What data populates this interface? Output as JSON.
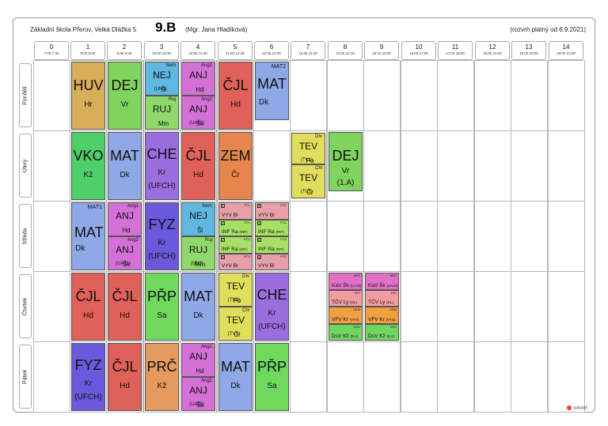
{
  "header": {
    "school": "Základní škola Přerov, Velká Dlážka 5",
    "class_name": "9.B",
    "teacher": "(Mgr. Jana Hladíková)",
    "validity": "(rozvrh platný od 6.9.2021)"
  },
  "periods": [
    {
      "num": "0",
      "time": "7:00 7:45"
    },
    {
      "num": "1",
      "time": "8:00 8:45"
    },
    {
      "num": "2",
      "time": "8:55 9:40"
    },
    {
      "num": "3",
      "time": "10:00 10:45"
    },
    {
      "num": "4",
      "time": "10:55 11:40"
    },
    {
      "num": "5",
      "time": "11:50 12:35"
    },
    {
      "num": "6",
      "time": "12:45 13:30"
    },
    {
      "num": "7",
      "time": "13:35 14:20"
    },
    {
      "num": "8",
      "time": "14:25 15:10"
    },
    {
      "num": "9",
      "time": "15:10 16:00"
    },
    {
      "num": "10",
      "time": "16:00 17:00"
    },
    {
      "num": "11",
      "time": "17:00 18:00"
    },
    {
      "num": "12",
      "time": "18:00 19:00"
    },
    {
      "num": "13",
      "time": "19:00 20:00"
    },
    {
      "num": "14",
      "time": "20:00 21:00"
    }
  ],
  "days": [
    "Pondělí",
    "Úterý",
    "Středa",
    "Čtvrtek",
    "Pátek"
  ],
  "colors": {
    "HUV": "#d9ae5a",
    "DEJ": "#7fd35f",
    "NEJ": "#5fb8e0",
    "ANJ": "#d470d6",
    "CJL": "#e0605a",
    "MAT": "#8fa8e6",
    "VKO": "#4fcf6a",
    "CHE": "#9b6ee0",
    "ZEM": "#e6854e",
    "TEV": "#e0de5a",
    "FYZ": "#6b58dc",
    "PRP": "#6fd95e",
    "PRC": "#e69a5e",
    "VYV": "#e8a0a8",
    "INF": "#a8df66",
    "RUJ": "#8fd86a",
    "KAV": "#e070c8",
    "TCV": "#f09ca0",
    "VFV": "#f0a040",
    "DSV": "#6fd760"
  },
  "logo_text": "bakaláři",
  "lessons": {
    "mon_huv": {
      "subj": "HUV",
      "teacher": "Hr"
    },
    "mon_dej": {
      "subj": "DEJ",
      "teacher": "Vr"
    },
    "mon_nej": {
      "grp": "Nem",
      "subj": "NEJ",
      "teacher": "Šl",
      "room": "(UNJ)"
    },
    "mon_ruj": {
      "grp": "Ruj",
      "subj": "RUJ",
      "teacher": "Mm"
    },
    "mon_anj1": {
      "grp": "Ang1",
      "subj": "ANJ",
      "teacher": "Hd"
    },
    "mon_anj2": {
      "grp": "Ang2",
      "subj": "ANJ",
      "teacher": "Šk",
      "room": "(UAJ1)"
    },
    "mon_cjl": {
      "subj": "ČJL",
      "teacher": "Hd"
    },
    "mon_mat": {
      "grp": "MAT2",
      "subj": "MAT",
      "teacher": "Dk"
    },
    "tue_vko": {
      "subj": "VKO",
      "teacher": "Kž"
    },
    "tue_mat": {
      "subj": "MAT",
      "teacher": "Dk"
    },
    "tue_che": {
      "subj": "CHE",
      "teacher": "Kr",
      "room": "(UFCH)"
    },
    "tue_cjl": {
      "subj": "ČJL",
      "teacher": "Hd"
    },
    "tue_zem": {
      "subj": "ZEM",
      "teacher": "Čr"
    },
    "tue_tev1": {
      "grp": "Dív",
      "subj": "TEV",
      "teacher": "Po",
      "room": "(TV1)"
    },
    "tue_tev2": {
      "grp": "Chl",
      "subj": "TEV",
      "teacher": "Čr",
      "room": "(TV2)"
    },
    "tue_dej": {
      "subj": "DEJ",
      "teacher": "Vr",
      "room": "(1.A)"
    },
    "wed_mat": {
      "grp": "MAT1",
      "subj": "MAT",
      "teacher": "Dk"
    },
    "wed_anj1": {
      "grp": "Ang1",
      "subj": "ANJ",
      "teacher": "Hd"
    },
    "wed_anj2": {
      "grp": "Ang2",
      "subj": "ANJ",
      "teacher": "Šk",
      "room": "(UAJ1)"
    },
    "wed_fyz": {
      "subj": "FYZ",
      "teacher": "Kr",
      "room": "(UFCH)"
    },
    "wed_nej": {
      "grp": "Nem",
      "subj": "NEJ",
      "teacher": "Šl"
    },
    "wed_ruj": {
      "grp": "Ruj",
      "subj": "RUJ",
      "teacher": "Mm",
      "room": "(UNJ)"
    },
    "wed5_a": {
      "sq": "1",
      "grp": "PČ1",
      "text": "VYV Bl"
    },
    "wed5_b": {
      "sq": "1",
      "grp": "PČ1",
      "text": "INF Ra",
      "room": "(INF)"
    },
    "wed5_c": {
      "sq": "2",
      "grp": "PČ2",
      "text": "INF Ra",
      "room": "(INF)"
    },
    "wed5_d": {
      "sq": "2",
      "grp": "PČ2",
      "text": "VYV Bl"
    },
    "wed6_a": {
      "sq": "1",
      "grp": "PČ1",
      "text": "VYV Bl"
    },
    "wed6_b": {
      "sq": "1",
      "grp": "PČ1",
      "text": "INF Ra",
      "room": "(INF)"
    },
    "wed6_c": {
      "sq": "2",
      "grp": "PČ2",
      "text": "INF Ra",
      "room": "(INF)"
    },
    "wed6_d": {
      "sq": "2",
      "grp": "PČ2",
      "text": "VYV Bl"
    },
    "thu_cjl1": {
      "subj": "ČJL",
      "teacher": "Hd"
    },
    "thu_cjl2": {
      "subj": "ČJL",
      "teacher": "Hd"
    },
    "thu_prp": {
      "subj": "PŘP",
      "teacher": "Sa"
    },
    "thu_mat": {
      "subj": "MAT",
      "teacher": "Dk"
    },
    "thu_tev1": {
      "grp": "Dív",
      "subj": "TEV",
      "teacher": "Po",
      "room": "(TV2)"
    },
    "thu_tev2": {
      "grp": "Chl",
      "subj": "TEV",
      "teacher": "Čr",
      "room": "(TV1)"
    },
    "thu_che": {
      "subj": "CHE",
      "teacher": "Kr",
      "room": "(UFCH)"
    },
    "thu8_a": {
      "grp": "AED",
      "text": "KaV Šk",
      "room": "(UAJ2)"
    },
    "thu8_b": {
      "grp": "TEV",
      "text": "TČV Ly",
      "room": "(DL)"
    },
    "thu8_c": {
      "grp": "DEM",
      "text": "VFV Kr",
      "room": "(VTS)"
    },
    "thu8_d": {
      "grp": "DSV",
      "text": "DsV Kž",
      "room": "(8.A)"
    },
    "thu9_a": {
      "grp": "AED",
      "text": "KaV Šk",
      "room": "(UAJ2)"
    },
    "thu9_b": {
      "grp": "TEV",
      "text": "TČV Ly",
      "room": "(DL)"
    },
    "thu9_c": {
      "grp": "DEM",
      "text": "VFV Kr",
      "room": "(VTS)"
    },
    "thu9_d": {
      "grp": "DSV",
      "text": "DsV Kž",
      "room": "(8.A)"
    },
    "fri_fyz": {
      "subj": "FYZ",
      "teacher": "Kr",
      "room": "(UFCH)"
    },
    "fri_cjl": {
      "subj": "ČJL",
      "teacher": "Hd"
    },
    "fri_prc": {
      "subj": "PRČ",
      "teacher": "Kž"
    },
    "fri_anj1": {
      "grp": "Ang1",
      "subj": "ANJ",
      "teacher": "Hd"
    },
    "fri_anj2": {
      "grp": "Ang2",
      "subj": "ANJ",
      "teacher": "Šk",
      "room": "(UAJ1)"
    },
    "fri_mat": {
      "subj": "MAT",
      "teacher": "Dk"
    },
    "fri_prp": {
      "subj": "PŘP",
      "teacher": "Sa"
    }
  }
}
